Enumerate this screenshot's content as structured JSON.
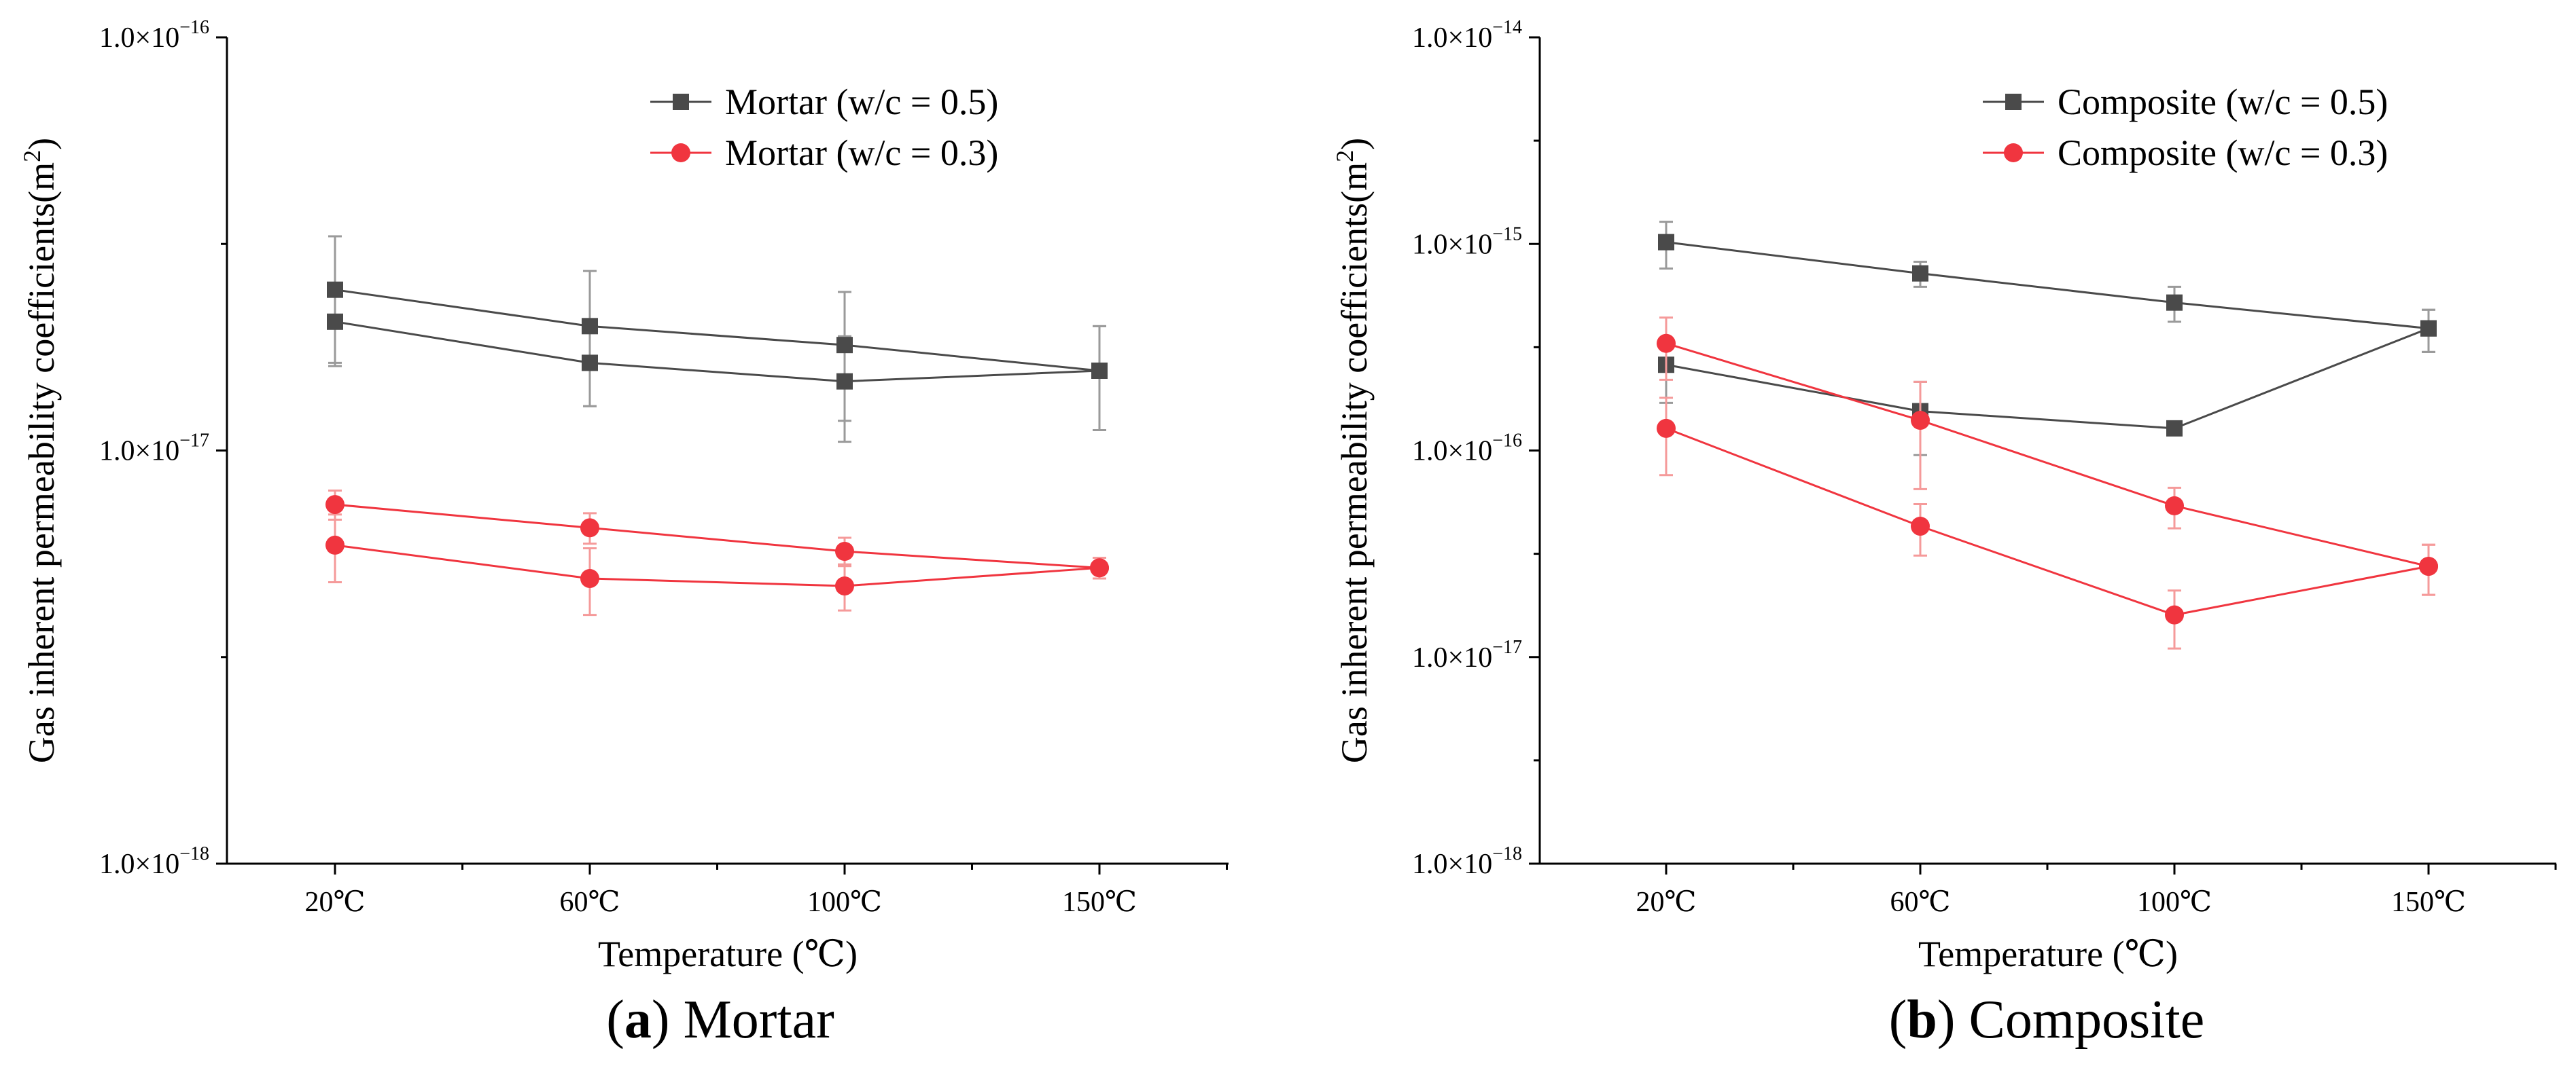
{
  "chart_data": [
    {
      "type": "line",
      "title": "",
      "caption_letter": "a",
      "caption_text": "Mortar",
      "xlabel": "Temperature (℃)",
      "ylabel": "Gas inherent permeability coefficients(m²)",
      "ylabel_main": "Gas inherent permeability coefficients(m",
      "ylabel_sup": "2",
      "ylabel_end": ")",
      "yscale": "log",
      "ylim": [
        1e-18,
        1e-16
      ],
      "yticks": [
        {
          "value": 1e-18,
          "mantissa": "1.0×10",
          "exp": "−18"
        },
        {
          "value": 1e-17,
          "mantissa": "1.0×10",
          "exp": "−17"
        },
        {
          "value": 1e-16,
          "mantissa": "1.0×10",
          "exp": "−16"
        }
      ],
      "categories": [
        "20℃",
        "60℃",
        "100℃",
        "150℃"
      ],
      "grid": false,
      "legend_position": "top-right",
      "series": [
        {
          "name": "Mortar (w/c = 0.5)",
          "color": "#4a4a4a",
          "marker": "square",
          "upper": [
            2.45e-17,
            2e-17,
            1.8e-17,
            1.56e-17
          ],
          "upper_err": [
            8.5e-18,
            7.2e-18,
            6.2e-18,
            4.4e-18
          ],
          "lower": [
            2.05e-17,
            1.63e-17,
            1.47e-17,
            1.56e-17
          ],
          "lower_err": [
            4.2e-18,
            3.5e-18,
            4.2e-18,
            4.4e-18
          ]
        },
        {
          "name": "Mortar (w/c = 0.3)",
          "color": "#f0353f",
          "marker": "circle",
          "upper": [
            7.4e-18,
            6.5e-18,
            5.7e-18,
            5.2e-18
          ],
          "upper_err": [
            6e-19,
            5.5e-19,
            4.5e-19,
            3e-19
          ],
          "lower": [
            5.9e-18,
            4.9e-18,
            4.7e-18,
            5.2e-18
          ],
          "lower_err": [
            1.1e-18,
            9e-19,
            6e-19,
            3e-19
          ]
        }
      ]
    },
    {
      "type": "line",
      "title": "",
      "caption_letter": "b",
      "caption_text": "Composite",
      "xlabel": "Temperature (℃)",
      "ylabel": "Gas inherent permeability coefficients(m²)",
      "ylabel_main": "Gas inherent permeability coefficients(m",
      "ylabel_sup": "2",
      "ylabel_end": ")",
      "yscale": "log",
      "ylim": [
        1e-18,
        1e-14
      ],
      "yticks": [
        {
          "value": 1e-18,
          "mantissa": "1.0×10",
          "exp": "−18"
        },
        {
          "value": 1e-17,
          "mantissa": "1.0×10",
          "exp": "−17"
        },
        {
          "value": 1e-16,
          "mantissa": "1.0×10",
          "exp": "−16"
        },
        {
          "value": 1e-15,
          "mantissa": "1.0×10",
          "exp": "−15"
        },
        {
          "value": 1e-14,
          "mantissa": "1.0×10",
          "exp": "−14"
        }
      ],
      "categories": [
        "20℃",
        "60℃",
        "100℃",
        "150℃"
      ],
      "grid": false,
      "legend_position": "top-right",
      "series": [
        {
          "name": "Composite (w/c = 0.5)",
          "color": "#4a4a4a",
          "marker": "square",
          "upper": [
            1.02e-15,
            7.2e-16,
            5.2e-16,
            3.9e-16
          ],
          "upper_err": [
            2.6e-16,
            1e-16,
            1e-16,
            9e-17
          ],
          "lower": [
            2.6e-16,
            1.55e-16,
            1.28e-16,
            3.9e-16
          ],
          "lower_err": [
            9e-17,
            6e-17,
            0.0,
            9e-17
          ]
        },
        {
          "name": "Composite (w/c = 0.3)",
          "color": "#f0353f",
          "marker": "circle",
          "upper": [
            3.3e-16,
            1.4e-16,
            5.4e-17,
            2.75e-17
          ],
          "upper_err": [
            1.1e-16,
            7.5e-17,
            1.2e-17,
            7.5e-18
          ],
          "lower": [
            1.28e-16,
            4.3e-17,
            1.6e-17,
            2.75e-17
          ],
          "lower_err": [
            5.2e-17,
            1.2e-17,
            5e-18,
            7.5e-18
          ]
        }
      ]
    }
  ]
}
